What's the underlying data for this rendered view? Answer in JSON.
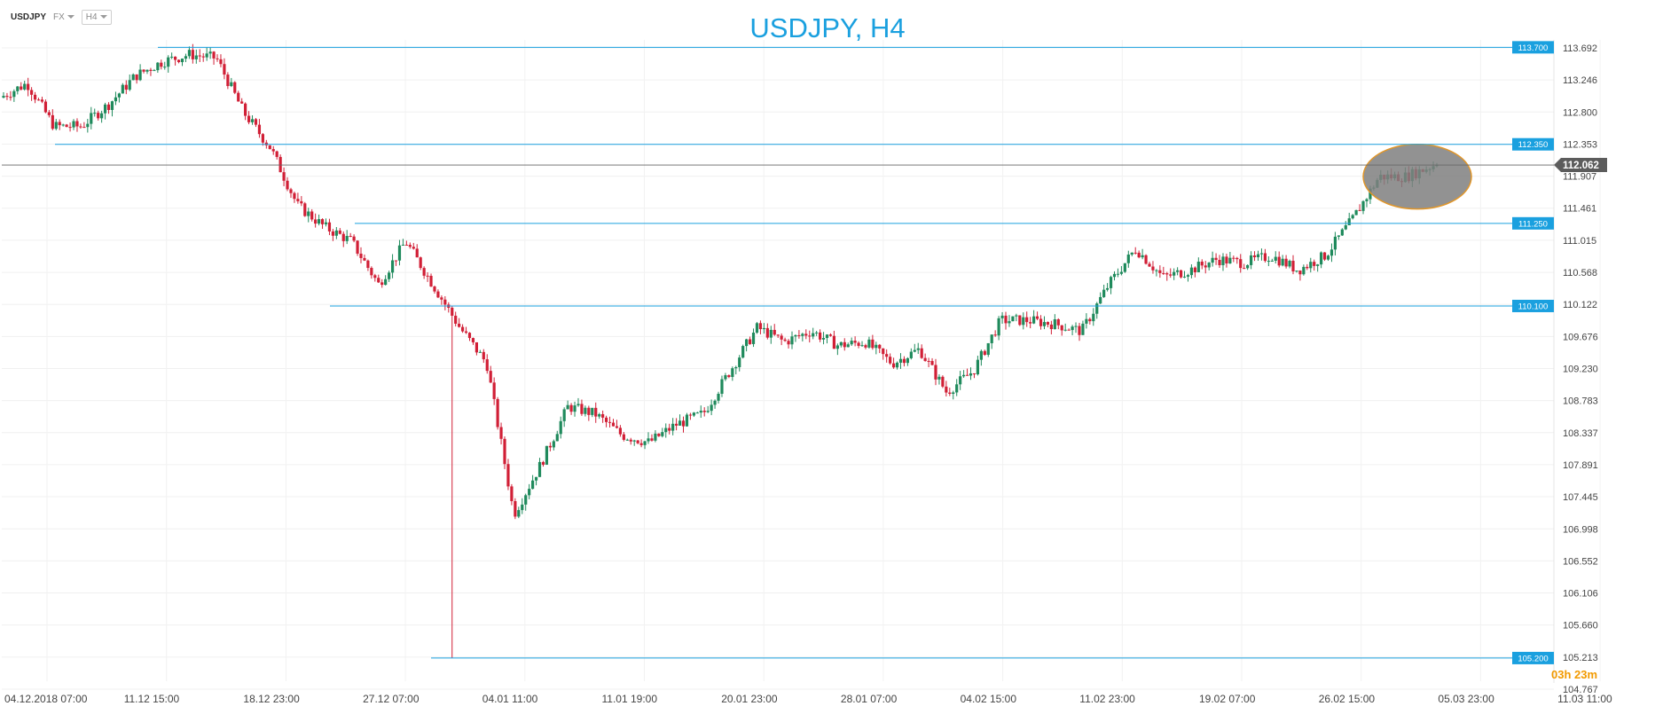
{
  "toolbar": {
    "symbol": "USDJPY",
    "market": "FX",
    "timeframe": "H4"
  },
  "chart_data": {
    "type": "candlestick",
    "title": "USDJPY, H4",
    "ylim": [
      104.55,
      113.9
    ],
    "y_ticks": [
      "113.692",
      "113.246",
      "112.800",
      "112.353",
      "111.907",
      "111.461",
      "111.015",
      "110.568",
      "110.122",
      "109.676",
      "109.230",
      "108.783",
      "108.337",
      "107.891",
      "107.445",
      "106.998",
      "106.552",
      "106.106",
      "105.660",
      "105.213",
      "104.767"
    ],
    "x_ticks": [
      "04.12.2018  07:00",
      "11.12  15:00",
      "18.12  23:00",
      "27.12  07:00",
      "04.01  11:00",
      "11.01  19:00",
      "20.01  23:00",
      "28.01  07:00",
      "04.02  15:00",
      "11.02  23:00",
      "19.02  07:00",
      "26.02  15:00",
      "05.03  23:00",
      "11.03  11:00"
    ],
    "grid": true,
    "colors": {
      "up": "#1f8a5c",
      "down": "#d11f36",
      "level": "#1aa0df",
      "price": "#666666",
      "price_label": "#5c5c5c",
      "highlight_fill": "#7f7f7f",
      "highlight_stroke": "#e0962a"
    },
    "current_price": "112.062",
    "levels": [
      {
        "value": 113.7,
        "label": "113.700"
      },
      {
        "value": 112.35,
        "label": "112.350"
      },
      {
        "value": 111.25,
        "label": "111.250"
      },
      {
        "value": 110.1,
        "label": "110.100"
      },
      {
        "value": 105.2,
        "label": "105.200"
      }
    ],
    "highlight": {
      "label": "consolidation-zone",
      "start": "01.03",
      "end": "04.03",
      "low": 111.45,
      "high": 112.35
    },
    "path_anchors": [
      [
        "04.12.2018 07:00",
        113.0
      ],
      [
        "05.12",
        113.2
      ],
      [
        "06.12",
        112.6
      ],
      [
        "07.12",
        112.6
      ],
      [
        "10.12",
        112.9
      ],
      [
        "11.12 15:00",
        113.3
      ],
      [
        "12.12",
        113.5
      ],
      [
        "13.12",
        113.6
      ],
      [
        "14.12",
        113.55
      ],
      [
        "17.12",
        112.8
      ],
      [
        "18.12 23:00",
        112.3
      ],
      [
        "19.12",
        111.5
      ],
      [
        "20.12",
        111.2
      ],
      [
        "21.12",
        111.0
      ],
      [
        "24.12",
        110.4
      ],
      [
        "27.12 07:00",
        111.0
      ],
      [
        "28.12",
        110.4
      ],
      [
        "31.12",
        109.8
      ],
      [
        "02.01",
        109.3
      ],
      [
        "03.01",
        107.2
      ],
      [
        "04.01 11:00",
        107.9
      ],
      [
        "07.01",
        108.7
      ],
      [
        "08.01",
        108.6
      ],
      [
        "09.01",
        108.3
      ],
      [
        "10.01",
        108.2
      ],
      [
        "11.01 19:00",
        108.45
      ],
      [
        "14.01",
        108.6
      ],
      [
        "15.01",
        109.2
      ],
      [
        "17.01",
        109.8
      ],
      [
        "18.01",
        109.6
      ],
      [
        "20.01 23:00",
        109.75
      ],
      [
        "22.01",
        109.55
      ],
      [
        "24.01",
        109.6
      ],
      [
        "25.01",
        109.3
      ],
      [
        "28.01 07:00",
        109.5
      ],
      [
        "29.01",
        108.9
      ],
      [
        "31.01",
        109.2
      ],
      [
        "01.02",
        109.9
      ],
      [
        "04.02 15:00",
        109.9
      ],
      [
        "05.02",
        109.85
      ],
      [
        "08.02",
        109.75
      ],
      [
        "11.02 23:00",
        110.4
      ],
      [
        "12.02",
        110.9
      ],
      [
        "14.02",
        110.5
      ],
      [
        "15.02",
        110.6
      ],
      [
        "19.02 07:00",
        110.75
      ],
      [
        "21.02",
        110.7
      ],
      [
        "22.02",
        110.8
      ],
      [
        "25.02",
        110.6
      ],
      [
        "26.02 15:00",
        110.8
      ],
      [
        "27.02",
        111.3
      ],
      [
        "28.02",
        111.9
      ],
      [
        "01.03",
        111.9
      ],
      [
        "04.03",
        112.06
      ]
    ]
  }
}
